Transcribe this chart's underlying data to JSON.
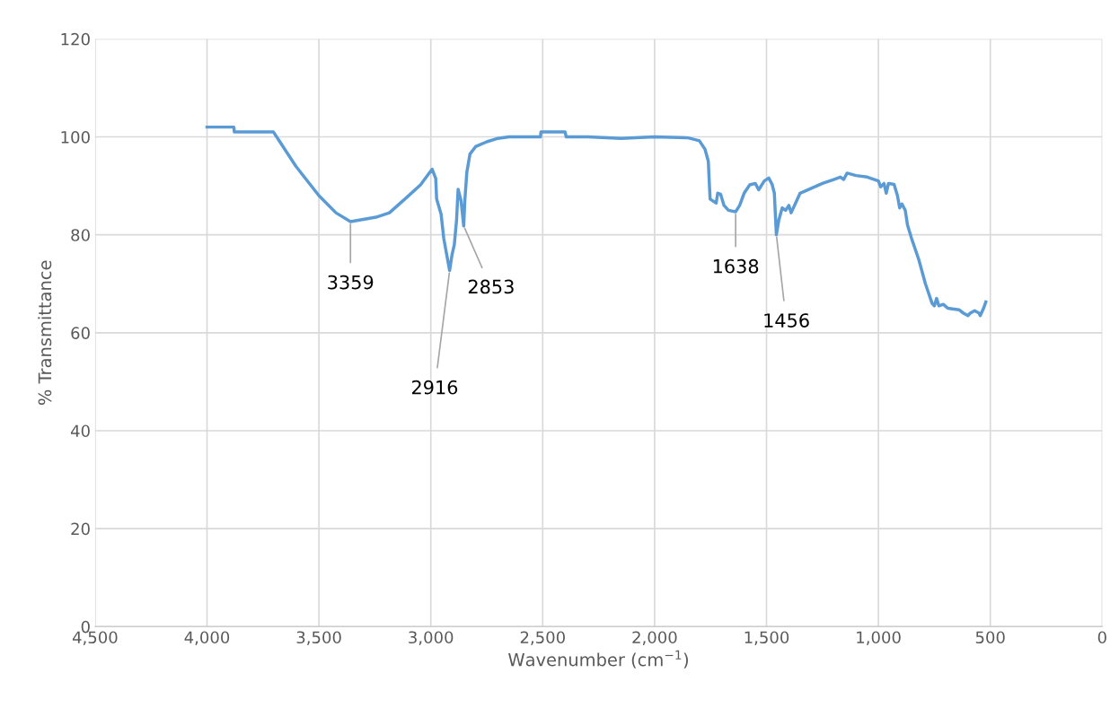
{
  "chart_data": {
    "type": "line",
    "xlabel": "Wavenumber (cm$^{−1}$)",
    "ylabel": "% Transmittance",
    "xlim": [
      4500,
      0
    ],
    "ylim": [
      0,
      120
    ],
    "xticks": [
      {
        "value": 4500,
        "label": "4,500"
      },
      {
        "value": 4000,
        "label": "4,000"
      },
      {
        "value": 3500,
        "label": "3,500"
      },
      {
        "value": 3000,
        "label": "3,000"
      },
      {
        "value": 2500,
        "label": "2,500"
      },
      {
        "value": 2000,
        "label": "2,000"
      },
      {
        "value": 1500,
        "label": "1,500"
      },
      {
        "value": 1000,
        "label": "1,000"
      },
      {
        "value": 500,
        "label": "500"
      },
      0
    ],
    "yticks": [
      0,
      20,
      40,
      60,
      80,
      100,
      120
    ],
    "grid": true,
    "legend": false,
    "marker": "none",
    "line_style": "solid",
    "series": [
      {
        "color": "#5b9bd5",
        "x": [
          4000,
          3880,
          3878,
          3703,
          3683,
          3603,
          3500,
          3424,
          3359,
          3245,
          3185,
          3106,
          3046,
          2994,
          2978,
          2974,
          2954,
          2942,
          2916,
          2905,
          2895,
          2885,
          2878,
          2865,
          2853,
          2848,
          2839,
          2825,
          2800,
          2750,
          2700,
          2650,
          2510,
          2508,
          2400,
          2395,
          2300,
          2150,
          2000,
          1850,
          1800,
          1775,
          1760,
          1755,
          1752,
          1725,
          1718,
          1705,
          1690,
          1670,
          1638,
          1620,
          1600,
          1575,
          1550,
          1535,
          1510,
          1490,
          1475,
          1465,
          1456,
          1445,
          1430,
          1415,
          1400,
          1390,
          1370,
          1350,
          1300,
          1250,
          1200,
          1170,
          1155,
          1140,
          1100,
          1050,
          1000,
          990,
          975,
          965,
          955,
          930,
          915,
          905,
          895,
          880,
          870,
          850,
          820,
          790,
          760,
          750,
          740,
          730,
          710,
          690,
          640,
          620,
          600,
          590,
          570,
          550,
          545,
          530,
          520
        ],
        "values": [
          102,
          102,
          101,
          101,
          99.6,
          94,
          88,
          84.5,
          82.7,
          83.6,
          84.5,
          87.7,
          90.2,
          93.4,
          91.5,
          87.3,
          84.2,
          79.2,
          72.7,
          76,
          78,
          83,
          89.3,
          87,
          81.8,
          87,
          92.8,
          96.5,
          98,
          99,
          99.7,
          100,
          100,
          101,
          101,
          100,
          100,
          99.7,
          100,
          99.8,
          99.2,
          97.5,
          95,
          90,
          87.3,
          86.5,
          88.5,
          88.3,
          86,
          85,
          84.7,
          86,
          88.5,
          90.2,
          90.5,
          89.2,
          91,
          91.6,
          90.3,
          88.5,
          80,
          83,
          85.5,
          85,
          86,
          84.5,
          86.5,
          88.5,
          89.5,
          90.5,
          91.3,
          91.8,
          91.3,
          92.6,
          92.1,
          91.8,
          91,
          89.8,
          90.5,
          88.5,
          90.5,
          90.3,
          88,
          85.5,
          86.3,
          85,
          82,
          79,
          75,
          70,
          66,
          65.5,
          67,
          65.5,
          65.8,
          65,
          64.7,
          64,
          63.5,
          64,
          64.5,
          64,
          63.5,
          65,
          66.3
        ]
      }
    ],
    "annotations": [
      {
        "text": "3359",
        "x": 3359,
        "y": 82.7
      },
      {
        "text": "2916",
        "x": 2916,
        "y": 72.7
      },
      {
        "text": "2853",
        "x": 2853,
        "y": 81.8
      },
      {
        "text": "1638",
        "x": 1638,
        "y": 84.7
      },
      {
        "text": "1456",
        "x": 1456,
        "y": 80
      }
    ]
  }
}
